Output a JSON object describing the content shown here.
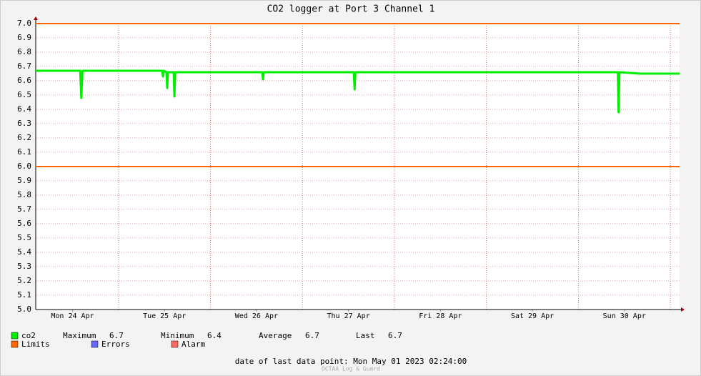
{
  "chart_data": {
    "type": "line",
    "title": "CO2 logger at Port 3 Channel 1",
    "x": [
      2.4,
      8,
      14.0,
      14.3,
      14.6,
      20,
      26,
      32,
      35.4,
      35.6,
      35.8,
      36.5,
      36.7,
      36.9,
      38.4,
      38.6,
      38.8,
      44,
      50,
      56,
      61.5,
      61.7,
      61.9,
      68,
      74,
      80,
      85.4,
      85.6,
      85.8,
      92,
      98,
      104,
      110,
      116,
      122,
      128,
      134,
      140,
      146,
      152,
      154.3,
      154.5,
      154.7,
      160,
      166,
      170.4
    ],
    "series": [
      {
        "name": "co2",
        "color": "#00ee00",
        "values": [
          6.67,
          6.67,
          6.67,
          6.48,
          6.67,
          6.67,
          6.67,
          6.67,
          6.67,
          6.63,
          6.67,
          6.66,
          6.55,
          6.66,
          6.66,
          6.49,
          6.66,
          6.66,
          6.66,
          6.66,
          6.66,
          6.61,
          6.66,
          6.66,
          6.66,
          6.66,
          6.66,
          6.54,
          6.66,
          6.66,
          6.66,
          6.66,
          6.66,
          6.66,
          6.66,
          6.66,
          6.66,
          6.66,
          6.66,
          6.66,
          6.66,
          6.38,
          6.66,
          6.65,
          6.65,
          6.65
        ]
      }
    ],
    "limits": {
      "name": "Limits",
      "color": "#ff6600",
      "values": [
        7.0,
        6.0
      ]
    },
    "other_legend": [
      {
        "name": "Errors",
        "color": "#6666ff"
      },
      {
        "name": "Alarm",
        "color": "#ff6666"
      }
    ],
    "stats": [
      {
        "label": "Maximum",
        "value": 6.7
      },
      {
        "label": "Minimum",
        "value": 6.4
      },
      {
        "label": "Average",
        "value": 6.7
      },
      {
        "label": "Last",
        "value": 6.7
      }
    ],
    "xlim": [
      2.4,
      170.4
    ],
    "xticks": [
      {
        "value": 12,
        "label": "Mon 24 Apr"
      },
      {
        "value": 36,
        "label": "Tue 25 Apr"
      },
      {
        "value": 60,
        "label": "Wed 26 Apr"
      },
      {
        "value": 84,
        "label": "Thu 27 Apr"
      },
      {
        "value": 108,
        "label": "Fri 28 Apr"
      },
      {
        "value": 132,
        "label": "Sat 29 Apr"
      },
      {
        "value": 156,
        "label": "Sun 30 Apr"
      }
    ],
    "x_major_grid": [
      24,
      48,
      72,
      96,
      120,
      144,
      168
    ],
    "ylim": [
      5.0,
      7.0
    ],
    "yticks": [
      {
        "value": 5,
        "label": "5.0"
      },
      5.1,
      5.2,
      5.3,
      5.4,
      5.5,
      5.6,
      5.7,
      5.8,
      5.9,
      {
        "value": 6,
        "label": "6.0"
      },
      6.1,
      6.2,
      6.3,
      6.4,
      6.5,
      6.6,
      6.7,
      6.8,
      6.9,
      {
        "value": 7,
        "label": "7.0"
      }
    ],
    "grid": true,
    "footer": "date of last data point:  Mon May 01 2023 02:24:00",
    "watermark": "OCTAA Log & Guard"
  }
}
